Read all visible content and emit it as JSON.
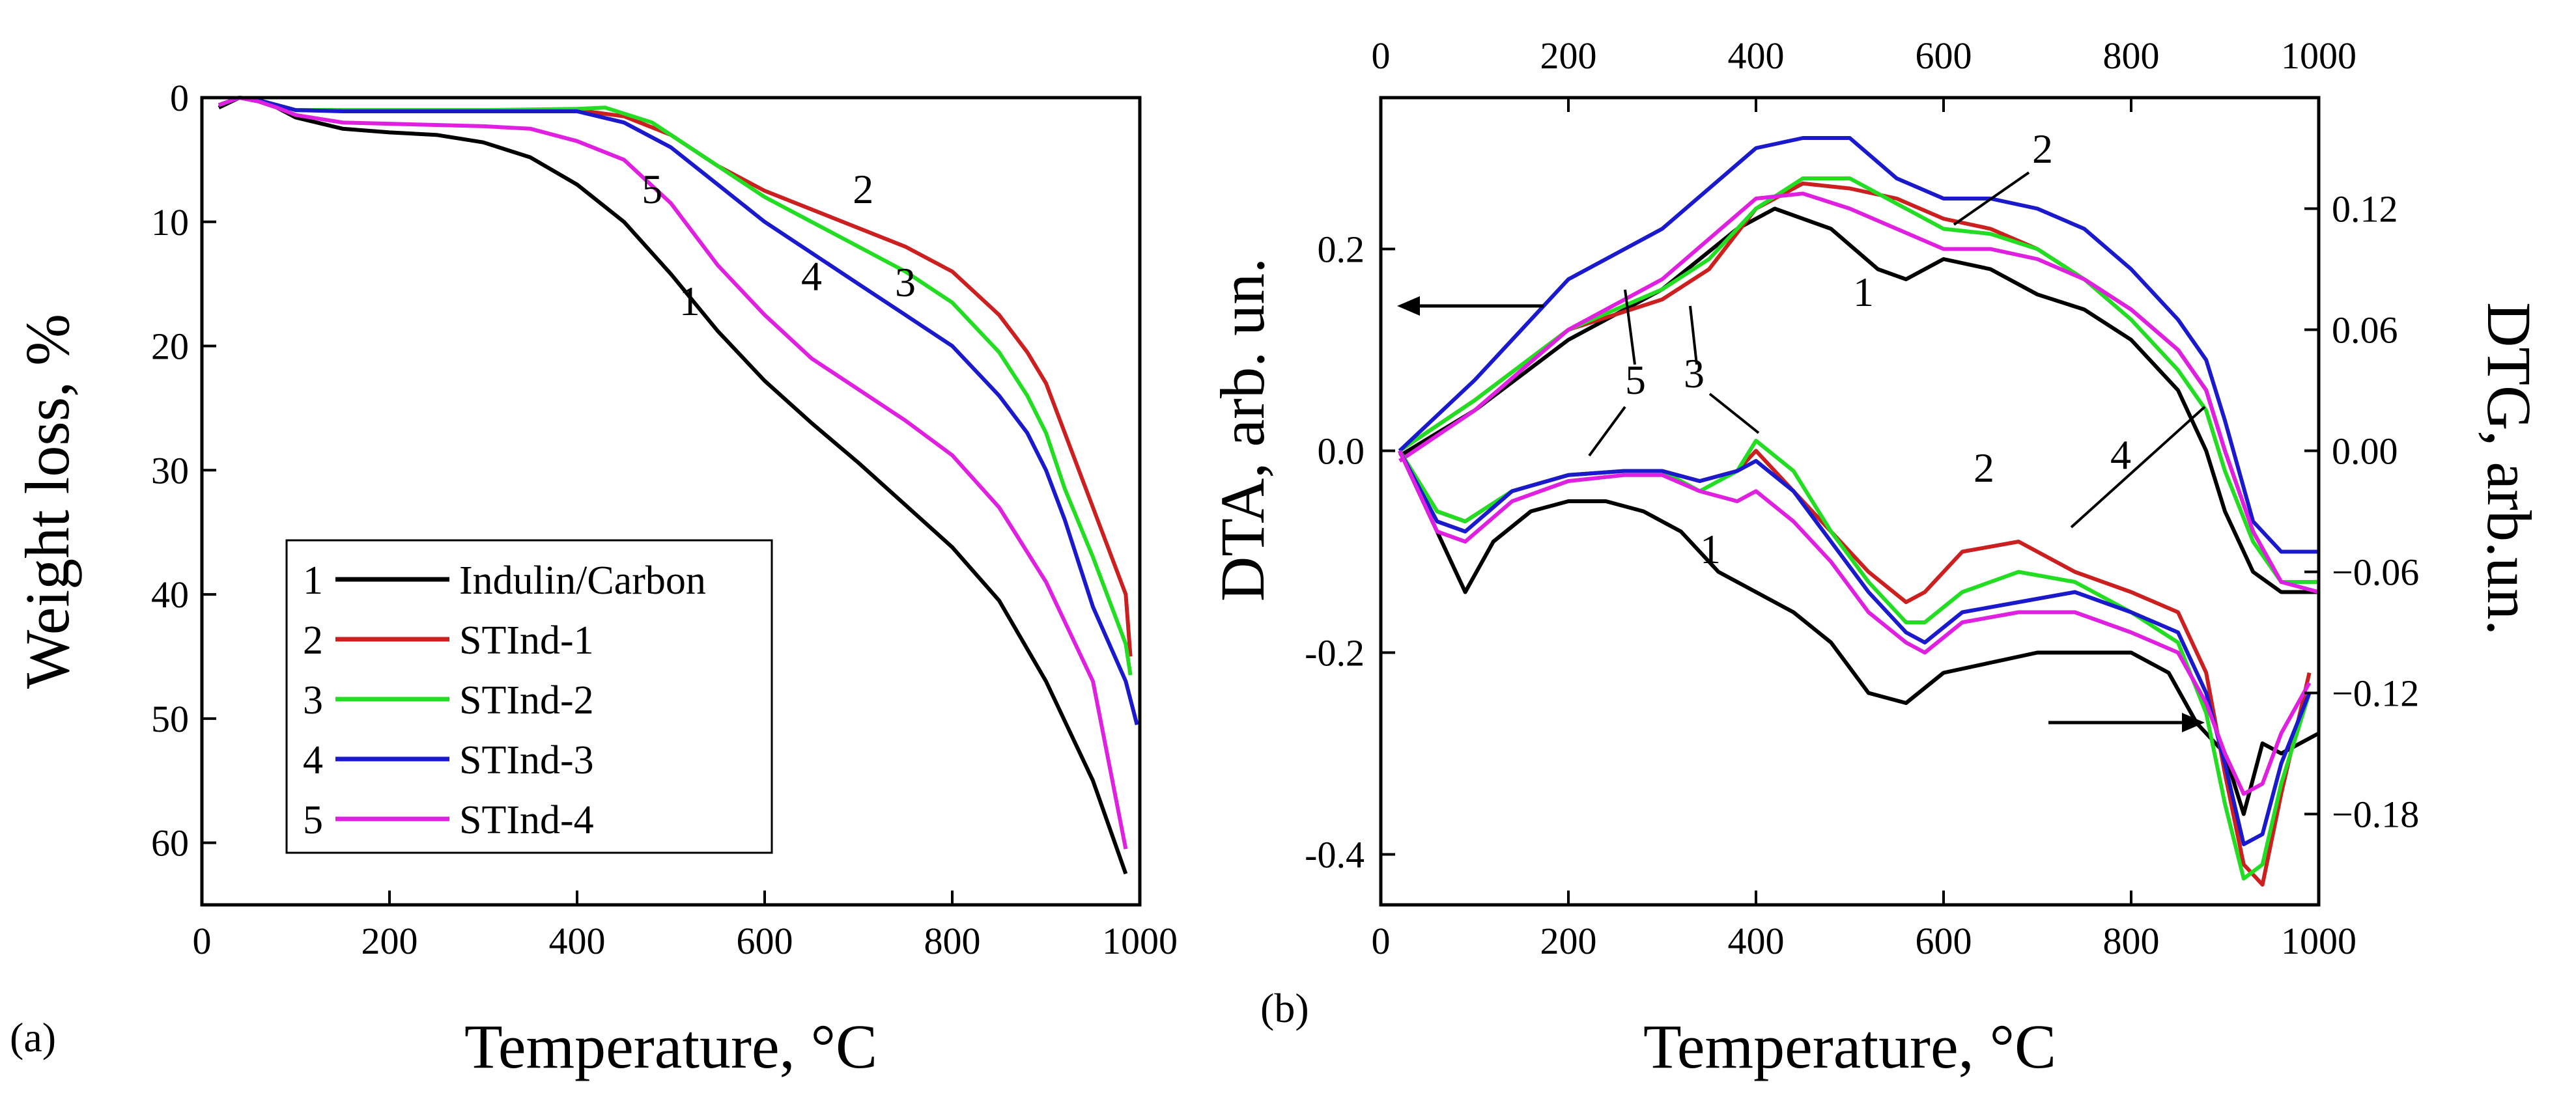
{
  "chart_data": [
    {
      "panel": "(a)",
      "type": "line",
      "xlabel": "Temperature, °C",
      "ylabel": "Weight loss, %",
      "xlim": [
        0,
        1000
      ],
      "ylim": [
        0,
        65
      ],
      "y_inverted": true,
      "xticks": [
        0,
        200,
        400,
        600,
        800,
        1000
      ],
      "yticks": [
        0,
        10,
        20,
        30,
        40,
        50,
        60
      ],
      "legend": {
        "position": "bottom-left",
        "entries": [
          {
            "num": "1",
            "label": "Indulin/Carbon",
            "color": "#000000"
          },
          {
            "num": "2",
            "label": "STInd-1",
            "color": "#cc1f1f"
          },
          {
            "num": "3",
            "label": "STInd-2",
            "color": "#22dd22"
          },
          {
            "num": "4",
            "label": "STInd-3",
            "color": "#1a1acc"
          },
          {
            "num": "5",
            "label": "STInd-4",
            "color": "#e020e0"
          }
        ]
      },
      "curve_labels": [
        {
          "text": "1",
          "x": 520,
          "y": 17.5
        },
        {
          "text": "2",
          "x": 705,
          "y": 8.5
        },
        {
          "text": "3",
          "x": 750,
          "y": 16
        },
        {
          "text": "4",
          "x": 650,
          "y": 15.5
        },
        {
          "text": "5",
          "x": 480,
          "y": 8.5
        }
      ],
      "series": [
        {
          "name": "Indulin/Carbon",
          "color": "#000000",
          "x": [
            18,
            40,
            60,
            80,
            100,
            150,
            200,
            250,
            300,
            350,
            400,
            450,
            500,
            550,
            600,
            650,
            700,
            750,
            800,
            850,
            900,
            950,
            985
          ],
          "y": [
            0.8,
            0,
            0.3,
            0.8,
            1.6,
            2.5,
            2.8,
            3.0,
            3.6,
            4.8,
            7.0,
            10.0,
            14.2,
            18.8,
            22.8,
            26.2,
            29.4,
            32.8,
            36.2,
            40.5,
            47.0,
            55.0,
            62.5
          ]
        },
        {
          "name": "STInd-1",
          "color": "#cc1f1f",
          "x": [
            18,
            40,
            60,
            80,
            100,
            150,
            200,
            300,
            400,
            450,
            500,
            550,
            600,
            650,
            700,
            750,
            800,
            850,
            880,
            900,
            920,
            950,
            985,
            990
          ],
          "y": [
            0.6,
            0,
            0.2,
            0.6,
            1.0,
            1.0,
            1.0,
            1.0,
            1.0,
            1.5,
            3.0,
            5.5,
            7.5,
            9.0,
            10.5,
            12.0,
            14.0,
            17.5,
            20.5,
            23.0,
            27.0,
            33.0,
            40.0,
            45.0
          ]
        },
        {
          "name": "STInd-2",
          "color": "#22dd22",
          "x": [
            18,
            40,
            60,
            80,
            100,
            150,
            200,
            300,
            400,
            430,
            480,
            550,
            600,
            650,
            700,
            750,
            800,
            850,
            880,
            900,
            920,
            950,
            985,
            990
          ],
          "y": [
            0.6,
            0,
            0.2,
            0.6,
            1.0,
            1.0,
            1.0,
            1.0,
            0.9,
            0.8,
            2.0,
            5.5,
            8.0,
            10.0,
            12.0,
            14.0,
            16.5,
            20.5,
            24.0,
            27.0,
            31.5,
            37.0,
            44.0,
            46.5
          ]
        },
        {
          "name": "STInd-3",
          "color": "#1a1acc",
          "x": [
            18,
            40,
            60,
            80,
            100,
            150,
            200,
            300,
            400,
            450,
            500,
            550,
            600,
            650,
            700,
            750,
            800,
            850,
            880,
            900,
            920,
            950,
            985,
            997
          ],
          "y": [
            0.6,
            0,
            0.2,
            0.6,
            1.0,
            1.1,
            1.1,
            1.1,
            1.1,
            2.0,
            4.0,
            7.0,
            10.0,
            12.5,
            15.0,
            17.5,
            20.0,
            24.0,
            27.0,
            30.0,
            34.0,
            41.0,
            47.0,
            50.5
          ]
        },
        {
          "name": "STInd-4",
          "color": "#e020e0",
          "x": [
            18,
            40,
            60,
            80,
            100,
            150,
            200,
            250,
            300,
            350,
            400,
            450,
            500,
            550,
            600,
            650,
            700,
            750,
            800,
            850,
            900,
            950,
            985
          ],
          "y": [
            0.6,
            0,
            0.3,
            0.8,
            1.4,
            2.0,
            2.1,
            2.2,
            2.3,
            2.5,
            3.5,
            5.0,
            8.5,
            13.5,
            17.5,
            21.0,
            23.5,
            26.0,
            28.8,
            33.0,
            39.0,
            47.0,
            60.5
          ]
        }
      ]
    },
    {
      "panel": "(b)",
      "type": "line",
      "xlabel": "Temperature, °C",
      "ylabel_left": "DTA, arb. un.",
      "ylabel_right": "DTG, arb.un.",
      "xlim": [
        0,
        1000
      ],
      "ylim_left": [
        -0.45,
        0.35
      ],
      "ylim_right": [
        -0.225,
        0.175
      ],
      "xticks": [
        0,
        200,
        400,
        600,
        800,
        1000
      ],
      "yticks_left": [
        "-0.4",
        "-0.2",
        "0.0",
        "0.2"
      ],
      "yticks_right": [
        "−0.18",
        "−0.12",
        "−0.06",
        "0.00",
        "0.06",
        "0.12"
      ],
      "curve_labels": [
        "1",
        "2",
        "5",
        "3",
        "1",
        "2",
        "4"
      ],
      "dta_series": [
        {
          "name": "1",
          "color": "#000000",
          "x": [
            20,
            100,
            200,
            300,
            380,
            420,
            480,
            530,
            560,
            600,
            650,
            700,
            750,
            800,
            850,
            880,
            900,
            930,
            960,
            1000
          ],
          "y": [
            -0.005,
            0.04,
            0.11,
            0.16,
            0.22,
            0.24,
            0.22,
            0.18,
            0.17,
            0.19,
            0.18,
            0.155,
            0.14,
            0.11,
            0.06,
            0.0,
            -0.06,
            -0.12,
            -0.14,
            -0.14
          ]
        },
        {
          "name": "2",
          "color": "#cc1f1f",
          "x": [
            20,
            100,
            200,
            300,
            350,
            400,
            450,
            500,
            550,
            600,
            650,
            700,
            750,
            800,
            850,
            880,
            900,
            930,
            960,
            1000
          ],
          "y": [
            0.0,
            0.05,
            0.12,
            0.15,
            0.18,
            0.24,
            0.265,
            0.26,
            0.25,
            0.23,
            0.22,
            0.2,
            0.17,
            0.14,
            0.1,
            0.06,
            0.0,
            -0.08,
            -0.13,
            -0.13
          ]
        },
        {
          "name": "3",
          "color": "#22dd22",
          "x": [
            20,
            100,
            200,
            300,
            350,
            400,
            450,
            500,
            550,
            600,
            650,
            700,
            750,
            800,
            850,
            880,
            900,
            930,
            960,
            1000
          ],
          "y": [
            0.0,
            0.05,
            0.12,
            0.16,
            0.19,
            0.24,
            0.27,
            0.27,
            0.245,
            0.22,
            0.215,
            0.2,
            0.17,
            0.13,
            0.08,
            0.04,
            -0.02,
            -0.09,
            -0.13,
            -0.13
          ]
        },
        {
          "name": "4",
          "color": "#1a1acc",
          "x": [
            20,
            100,
            200,
            300,
            350,
            400,
            450,
            500,
            550,
            600,
            650,
            700,
            750,
            800,
            850,
            880,
            900,
            930,
            960,
            1000
          ],
          "y": [
            0.0,
            0.07,
            0.17,
            0.22,
            0.26,
            0.3,
            0.31,
            0.31,
            0.27,
            0.25,
            0.25,
            0.24,
            0.22,
            0.18,
            0.13,
            0.09,
            0.03,
            -0.07,
            -0.1,
            -0.1
          ]
        },
        {
          "name": "5",
          "color": "#e020e0",
          "x": [
            20,
            100,
            200,
            300,
            350,
            400,
            450,
            500,
            550,
            600,
            650,
            700,
            750,
            800,
            850,
            880,
            900,
            930,
            960,
            1000
          ],
          "y": [
            -0.01,
            0.04,
            0.12,
            0.17,
            0.21,
            0.25,
            0.255,
            0.24,
            0.22,
            0.2,
            0.2,
            0.19,
            0.17,
            0.14,
            0.1,
            0.06,
            0.0,
            -0.08,
            -0.13,
            -0.14
          ]
        }
      ],
      "dtg_series": [
        {
          "name": "1",
          "color": "#000000",
          "x": [
            20,
            60,
            90,
            120,
            160,
            200,
            240,
            280,
            320,
            360,
            400,
            440,
            480,
            520,
            560,
            600,
            650,
            700,
            750,
            800,
            840,
            870,
            900,
            920,
            940,
            960,
            1000
          ],
          "y": [
            0.0,
            -0.04,
            -0.07,
            -0.045,
            -0.03,
            -0.025,
            -0.025,
            -0.03,
            -0.04,
            -0.06,
            -0.07,
            -0.08,
            -0.095,
            -0.12,
            -0.125,
            -0.11,
            -0.105,
            -0.1,
            -0.1,
            -0.1,
            -0.11,
            -0.135,
            -0.15,
            -0.18,
            -0.145,
            -0.15,
            -0.14
          ]
        },
        {
          "name": "2",
          "color": "#cc1f1f",
          "x": [
            20,
            60,
            90,
            140,
            200,
            260,
            300,
            340,
            380,
            400,
            440,
            480,
            520,
            560,
            580,
            620,
            680,
            740,
            800,
            850,
            880,
            900,
            920,
            940,
            960,
            990
          ],
          "y": [
            0.0,
            -0.03,
            -0.035,
            -0.02,
            -0.012,
            -0.01,
            -0.01,
            -0.015,
            -0.01,
            0.0,
            -0.02,
            -0.04,
            -0.06,
            -0.075,
            -0.07,
            -0.05,
            -0.045,
            -0.06,
            -0.07,
            -0.08,
            -0.11,
            -0.16,
            -0.205,
            -0.215,
            -0.17,
            -0.11
          ]
        },
        {
          "name": "3",
          "color": "#22dd22",
          "x": [
            20,
            60,
            90,
            140,
            200,
            260,
            300,
            340,
            380,
            400,
            440,
            480,
            520,
            560,
            580,
            620,
            680,
            740,
            800,
            850,
            880,
            900,
            920,
            940,
            960,
            990
          ],
          "y": [
            0.0,
            -0.03,
            -0.035,
            -0.02,
            -0.012,
            -0.01,
            -0.01,
            -0.02,
            -0.01,
            0.005,
            -0.01,
            -0.04,
            -0.065,
            -0.085,
            -0.085,
            -0.07,
            -0.06,
            -0.065,
            -0.08,
            -0.095,
            -0.13,
            -0.175,
            -0.212,
            -0.205,
            -0.165,
            -0.12
          ]
        },
        {
          "name": "4",
          "color": "#1a1acc",
          "x": [
            20,
            60,
            90,
            140,
            200,
            260,
            300,
            340,
            380,
            400,
            440,
            480,
            520,
            560,
            580,
            620,
            680,
            740,
            800,
            850,
            880,
            900,
            920,
            940,
            960,
            990
          ],
          "y": [
            0.0,
            -0.035,
            -0.04,
            -0.02,
            -0.012,
            -0.01,
            -0.01,
            -0.015,
            -0.01,
            -0.005,
            -0.02,
            -0.045,
            -0.07,
            -0.09,
            -0.095,
            -0.08,
            -0.075,
            -0.07,
            -0.08,
            -0.09,
            -0.12,
            -0.155,
            -0.195,
            -0.19,
            -0.155,
            -0.12
          ]
        },
        {
          "name": "5",
          "color": "#e020e0",
          "x": [
            20,
            60,
            90,
            140,
            200,
            260,
            300,
            340,
            380,
            400,
            440,
            480,
            520,
            560,
            580,
            620,
            680,
            740,
            800,
            850,
            880,
            900,
            920,
            940,
            960,
            990
          ],
          "y": [
            0.0,
            -0.04,
            -0.045,
            -0.025,
            -0.015,
            -0.012,
            -0.012,
            -0.02,
            -0.025,
            -0.02,
            -0.035,
            -0.055,
            -0.08,
            -0.095,
            -0.1,
            -0.085,
            -0.08,
            -0.08,
            -0.09,
            -0.1,
            -0.125,
            -0.15,
            -0.17,
            -0.165,
            -0.14,
            -0.115
          ]
        }
      ]
    }
  ]
}
